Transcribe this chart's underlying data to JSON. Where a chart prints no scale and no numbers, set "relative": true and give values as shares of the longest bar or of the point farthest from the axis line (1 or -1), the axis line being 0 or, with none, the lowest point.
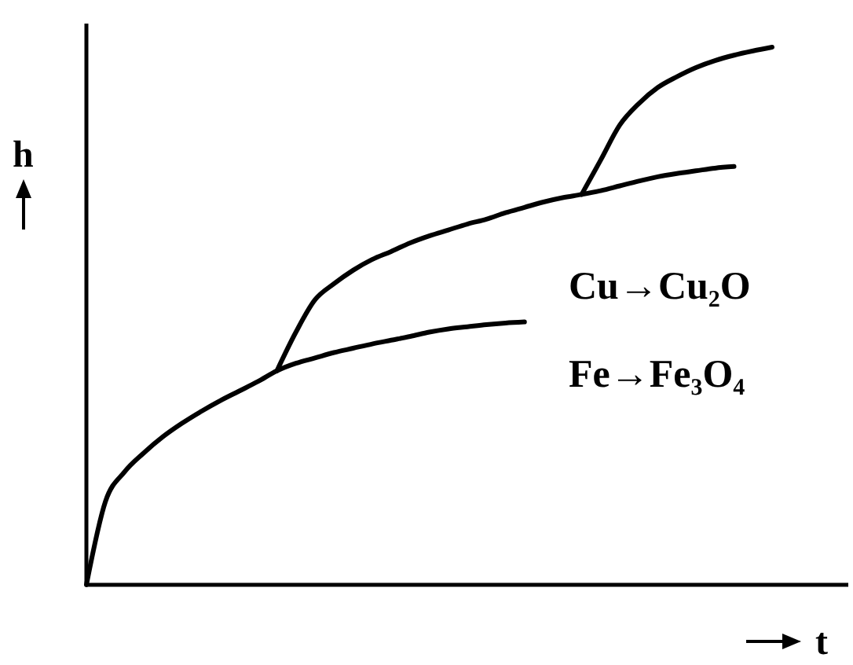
{
  "chart_data": {
    "type": "line",
    "relative": true,
    "xlabel": "t",
    "ylabel": "h",
    "marker": "none",
    "line_style": "solid",
    "categories": [
      null,
      null,
      null,
      null,
      null,
      null,
      null,
      null,
      null,
      null,
      null,
      null,
      null,
      null,
      null,
      null,
      null,
      null,
      null,
      null,
      null,
      null,
      null,
      null,
      null,
      null,
      null,
      null,
      null,
      null,
      null,
      null,
      null,
      null,
      null,
      null,
      null,
      null,
      null,
      null,
      null
    ],
    "series": [
      {
        "color": "#000000",
        "values": [
          0,
          0.155,
          0.21,
          0.245,
          0.275,
          0.3,
          0.322,
          0.342,
          0.36,
          0.378,
          0.398,
          0.412,
          0.422,
          0.432,
          0.44,
          0.448,
          0.455,
          0.462,
          0.47,
          0.476,
          0.48,
          0.484,
          0.487,
          0.489,
          null,
          null,
          null,
          null,
          null,
          null,
          null,
          null,
          null,
          null,
          null,
          null,
          null,
          null,
          null,
          null,
          null
        ]
      },
      {
        "color": "#000000",
        "values": [
          null,
          null,
          null,
          null,
          null,
          null,
          null,
          null,
          null,
          null,
          0.398,
          0.47,
          0.53,
          0.56,
          0.585,
          0.605,
          0.62,
          0.636,
          0.649,
          0.66,
          0.671,
          0.68,
          0.692,
          0.702,
          0.712,
          0.72,
          0.726,
          0.733,
          0.742,
          0.751,
          0.759,
          0.765,
          0.77,
          0.775,
          0.778,
          null,
          null,
          null,
          null,
          null,
          null
        ]
      },
      {
        "color": "#000000",
        "values": [
          null,
          null,
          null,
          null,
          null,
          null,
          null,
          null,
          null,
          null,
          null,
          null,
          null,
          null,
          null,
          null,
          null,
          null,
          null,
          null,
          null,
          null,
          null,
          null,
          null,
          null,
          0.726,
          0.79,
          0.855,
          0.895,
          0.925,
          0.945,
          0.962,
          0.975,
          0.985,
          0.993,
          1,
          null,
          null,
          null,
          null
        ]
      }
    ],
    "annotations": [
      "Cu→Cu₂O",
      "Fe→Fe₃O₄"
    ]
  }
}
